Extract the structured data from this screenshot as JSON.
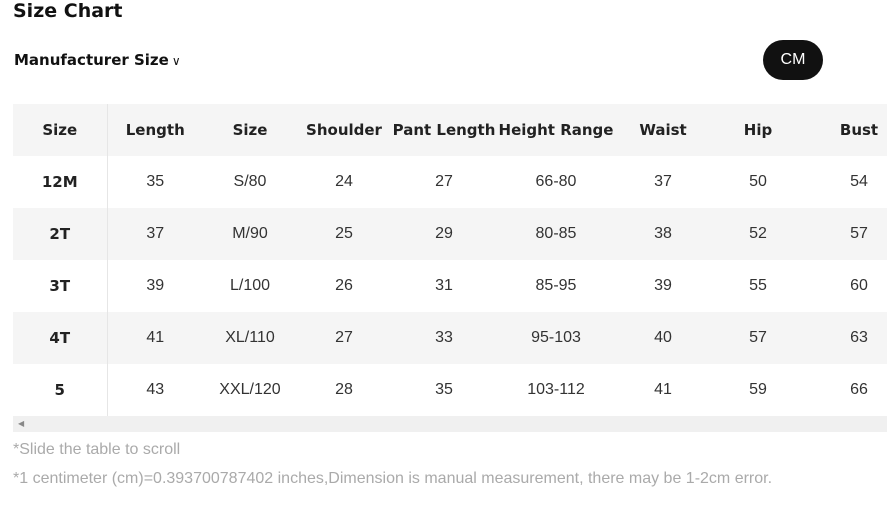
{
  "title": "Size Chart",
  "manufacturer_label": "Manufacturer Size",
  "unit_button": "CM",
  "table": {
    "headers": [
      "Size",
      "Length",
      "Size",
      "Shoulder",
      "Pant Length",
      "Height Range",
      "Waist",
      "Hip",
      "Bust"
    ],
    "rows": [
      [
        "12M",
        "35",
        "S/80",
        "24",
        "27",
        "66-80",
        "37",
        "50",
        "54"
      ],
      [
        "2T",
        "37",
        "M/90",
        "25",
        "29",
        "80-85",
        "38",
        "52",
        "57"
      ],
      [
        "3T",
        "39",
        "L/100",
        "26",
        "31",
        "85-95",
        "39",
        "55",
        "60"
      ],
      [
        "4T",
        "41",
        "XL/110",
        "27",
        "33",
        "95-103",
        "40",
        "57",
        "63"
      ],
      [
        "5",
        "43",
        "XXL/120",
        "28",
        "35",
        "103-112",
        "41",
        "59",
        "66"
      ]
    ]
  },
  "notes": [
    "*Slide the table to scroll",
    "*1 centimeter (cm)=0.393700787402 inches,Dimension is manual measurement, there may be 1-2cm error."
  ]
}
